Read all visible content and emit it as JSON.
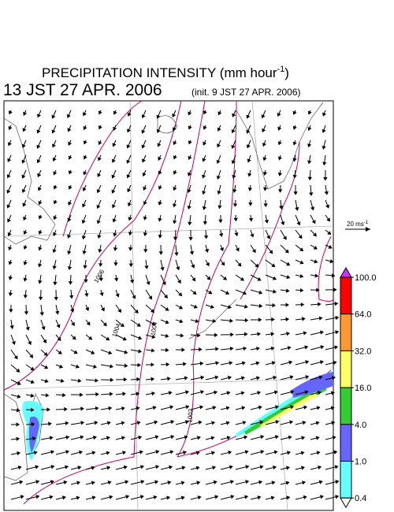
{
  "header": {
    "title": "PRECIPITATION INTENSITY (mm hour",
    "title_superscript": "-1",
    "title_close": ")",
    "valid_time": "13 JST 27 APR. 2006",
    "init_time": "(init. 9 JST 27 APR. 2006)"
  },
  "vector_key": {
    "label": "20 ms",
    "superscript": "-1"
  },
  "colorbar": {
    "levels": [
      {
        "value": 100,
        "label": "100.0"
      },
      {
        "value": 64,
        "label": "64.0"
      },
      {
        "value": 32,
        "label": "32.0"
      },
      {
        "value": 16,
        "label": "16.0"
      },
      {
        "value": 4,
        "label": "4.0"
      },
      {
        "value": 1,
        "label": "1.0"
      },
      {
        "value": 0.4,
        "label": "0.4"
      }
    ],
    "colors": [
      "#ff0000",
      "#ff9933",
      "#ffff66",
      "#33cc33",
      "#6666ff",
      "#66ffff"
    ],
    "over_color": "#cc33ff",
    "under_color": "#ffffff"
  },
  "isobar_labels": [
    "1006",
    "1004",
    "1004",
    "1002"
  ]
}
